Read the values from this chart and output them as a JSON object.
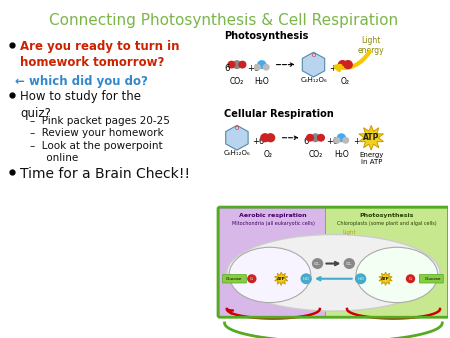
{
  "title": "Connecting Photosynthesis & Cell Respiration",
  "title_color": "#7ab648",
  "title_fontsize": 11,
  "bg_color": "#ffffff",
  "bullet1_text": "Are you ready to turn in\nhomework tomorrow?",
  "bullet1_color": "#cc2200",
  "arrow_text": "← which did you do?",
  "arrow_color": "#3388cc",
  "bullet2_text": "How to study for the\nquiz?",
  "bullet2_color": "#111111",
  "sub1": "–  Pink packet pages 20-25",
  "sub2": "–  Review your homework",
  "sub3": "–  Look at the powerpoint\n     online",
  "sub_color": "#111111",
  "bullet3_text": "Time for a Brain Check!!",
  "bullet3_color": "#111111",
  "text_fontsize": 8.5,
  "sub_fontsize": 7.5,
  "bullet3_fontsize": 10
}
